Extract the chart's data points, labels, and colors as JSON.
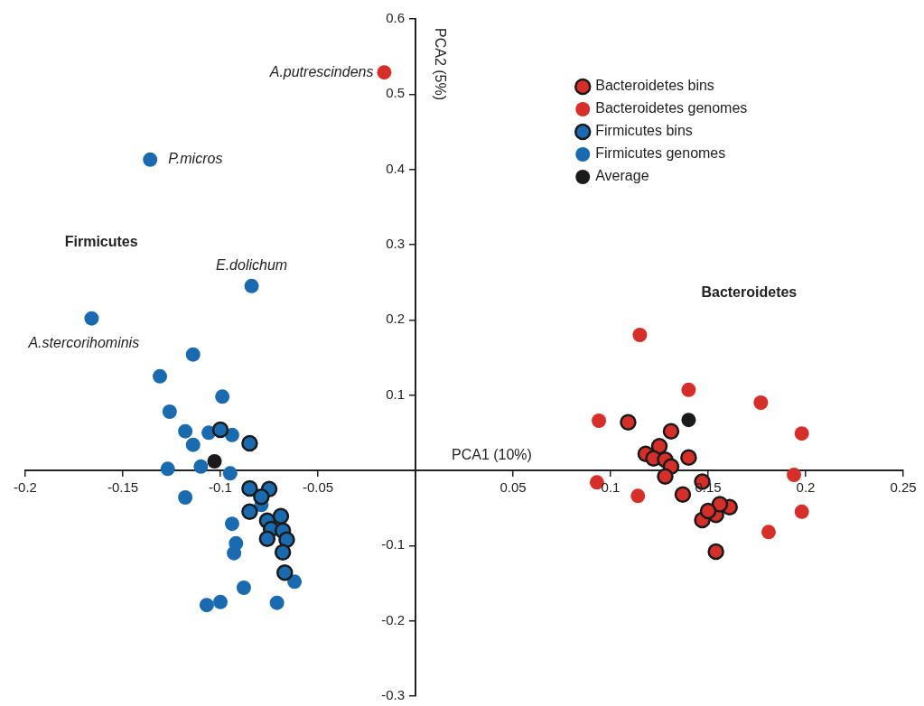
{
  "chart_data": {
    "type": "scatter",
    "xlabel": "PCA1 (10%)",
    "ylabel": "PCA2 (5%)",
    "xlim": [
      -0.2,
      0.25
    ],
    "ylim": [
      -0.3,
      0.6
    ],
    "xticks": [
      -0.2,
      -0.15,
      -0.1,
      -0.05,
      {
        "value": 0,
        "label": null
      },
      0.05,
      0.1,
      0.15,
      0.2,
      0.25
    ],
    "yticks": [
      -0.3,
      -0.2,
      -0.1,
      {
        "value": 0,
        "label": null
      },
      0.1,
      0.2,
      0.3,
      0.4,
      0.5,
      0.6
    ],
    "legend": "top right",
    "marker": "circle",
    "annotations": [
      "Firmicutes",
      "Bacteroidetes",
      {
        "text": "A.putrescindens",
        "x": -0.016,
        "y": 0.529
      },
      {
        "text": "P.micros",
        "x": -0.136,
        "y": 0.413
      },
      {
        "text": "E.dolichum",
        "x": -0.084,
        "y": 0.245
      },
      {
        "text": "A.stercorihominis",
        "x": -0.166,
        "y": 0.202
      }
    ],
    "series": [
      {
        "name": "Bacteroidetes bins",
        "color": "#d62f2a",
        "x": [
          0.109,
          0.131,
          0.125,
          0.118,
          0.122,
          0.128,
          0.131,
          0.14,
          0.128,
          0.147,
          0.137,
          0.161,
          0.154,
          0.147,
          0.154,
          0.156,
          0.15
        ],
        "values": [
          0.064,
          0.052,
          0.032,
          0.022,
          0.016,
          0.014,
          0.005,
          0.017,
          -0.008,
          -0.015,
          -0.032,
          -0.049,
          -0.059,
          -0.066,
          -0.108,
          -0.045,
          -0.054
        ]
      },
      {
        "name": "Bacteroidetes genomes",
        "color": "#d62f2a",
        "x": [
          -0.016,
          0.115,
          0.14,
          0.177,
          0.094,
          0.198,
          0.194,
          0.093,
          0.114,
          0.198,
          0.181
        ],
        "values": [
          0.529,
          0.18,
          0.107,
          0.09,
          0.066,
          0.049,
          -0.006,
          -0.016,
          -0.034,
          -0.055,
          -0.082
        ]
      },
      {
        "name": "Firmicutes bins",
        "color": "#1a6aaf",
        "x": [
          -0.1,
          -0.085,
          -0.085,
          -0.075,
          -0.079,
          -0.085,
          -0.069,
          -0.076,
          -0.074,
          -0.068,
          -0.076,
          -0.066,
          -0.068,
          -0.067
        ],
        "values": [
          0.054,
          0.036,
          -0.024,
          -0.025,
          -0.035,
          -0.055,
          -0.061,
          -0.067,
          -0.078,
          -0.08,
          -0.091,
          -0.092,
          -0.109,
          -0.136
        ]
      },
      {
        "name": "Firmicutes genomes",
        "color": "#1a6aaf",
        "x": [
          -0.166,
          -0.136,
          -0.084,
          -0.114,
          -0.131,
          -0.099,
          -0.126,
          -0.118,
          -0.106,
          -0.094,
          -0.114,
          -0.127,
          -0.11,
          -0.095,
          -0.118,
          -0.079,
          -0.094,
          -0.092,
          -0.093,
          -0.088,
          -0.107,
          -0.1,
          -0.071,
          -0.062
        ],
        "values": [
          0.202,
          0.413,
          0.245,
          0.154,
          0.125,
          0.098,
          0.078,
          0.052,
          0.05,
          0.047,
          0.034,
          0.002,
          0.005,
          -0.004,
          -0.036,
          -0.046,
          -0.071,
          -0.097,
          -0.11,
          -0.156,
          -0.179,
          -0.175,
          -0.176,
          -0.148
        ]
      },
      {
        "name": "Average",
        "color": "#1a1a1a",
        "x": [
          -0.103,
          0.14
        ],
        "values": [
          0.012,
          0.067
        ]
      }
    ]
  }
}
